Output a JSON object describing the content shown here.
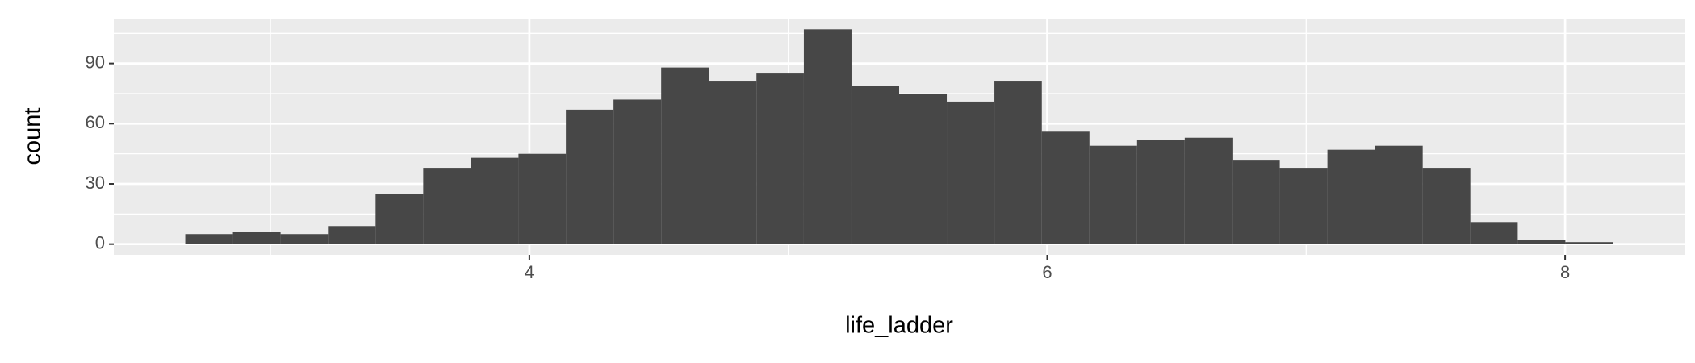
{
  "chart_data": {
    "type": "histogram",
    "x_label": "life_ladder",
    "y_label": "count",
    "bins": [
      2.671,
      2.855,
      3.039,
      3.222,
      3.406,
      3.59,
      3.774,
      3.958,
      4.141,
      4.325,
      4.509,
      4.693,
      4.877,
      5.06,
      5.244,
      5.428,
      5.612,
      5.796,
      5.979,
      6.163,
      6.347,
      6.531,
      6.715,
      6.898,
      7.082,
      7.266,
      7.45,
      7.634,
      7.817,
      8.001,
      8.185
    ],
    "values": [
      5,
      6,
      5,
      9,
      25,
      38,
      43,
      45,
      67,
      72,
      88,
      81,
      85,
      107,
      79,
      75,
      71,
      81,
      56,
      49,
      52,
      53,
      42,
      38,
      47,
      49,
      38,
      11,
      2,
      1
    ],
    "color": "#474747",
    "xlim": [
      2.395,
      8.461
    ],
    "ylim": [
      -5.35,
      112.35
    ],
    "xticks": [
      4,
      6,
      8
    ],
    "yticks": [
      0,
      30,
      60,
      90
    ],
    "x_minor_ticks": [
      3,
      5,
      7
    ],
    "y_minor_ticks": [
      15,
      45,
      75,
      105
    ],
    "grid": true
  }
}
